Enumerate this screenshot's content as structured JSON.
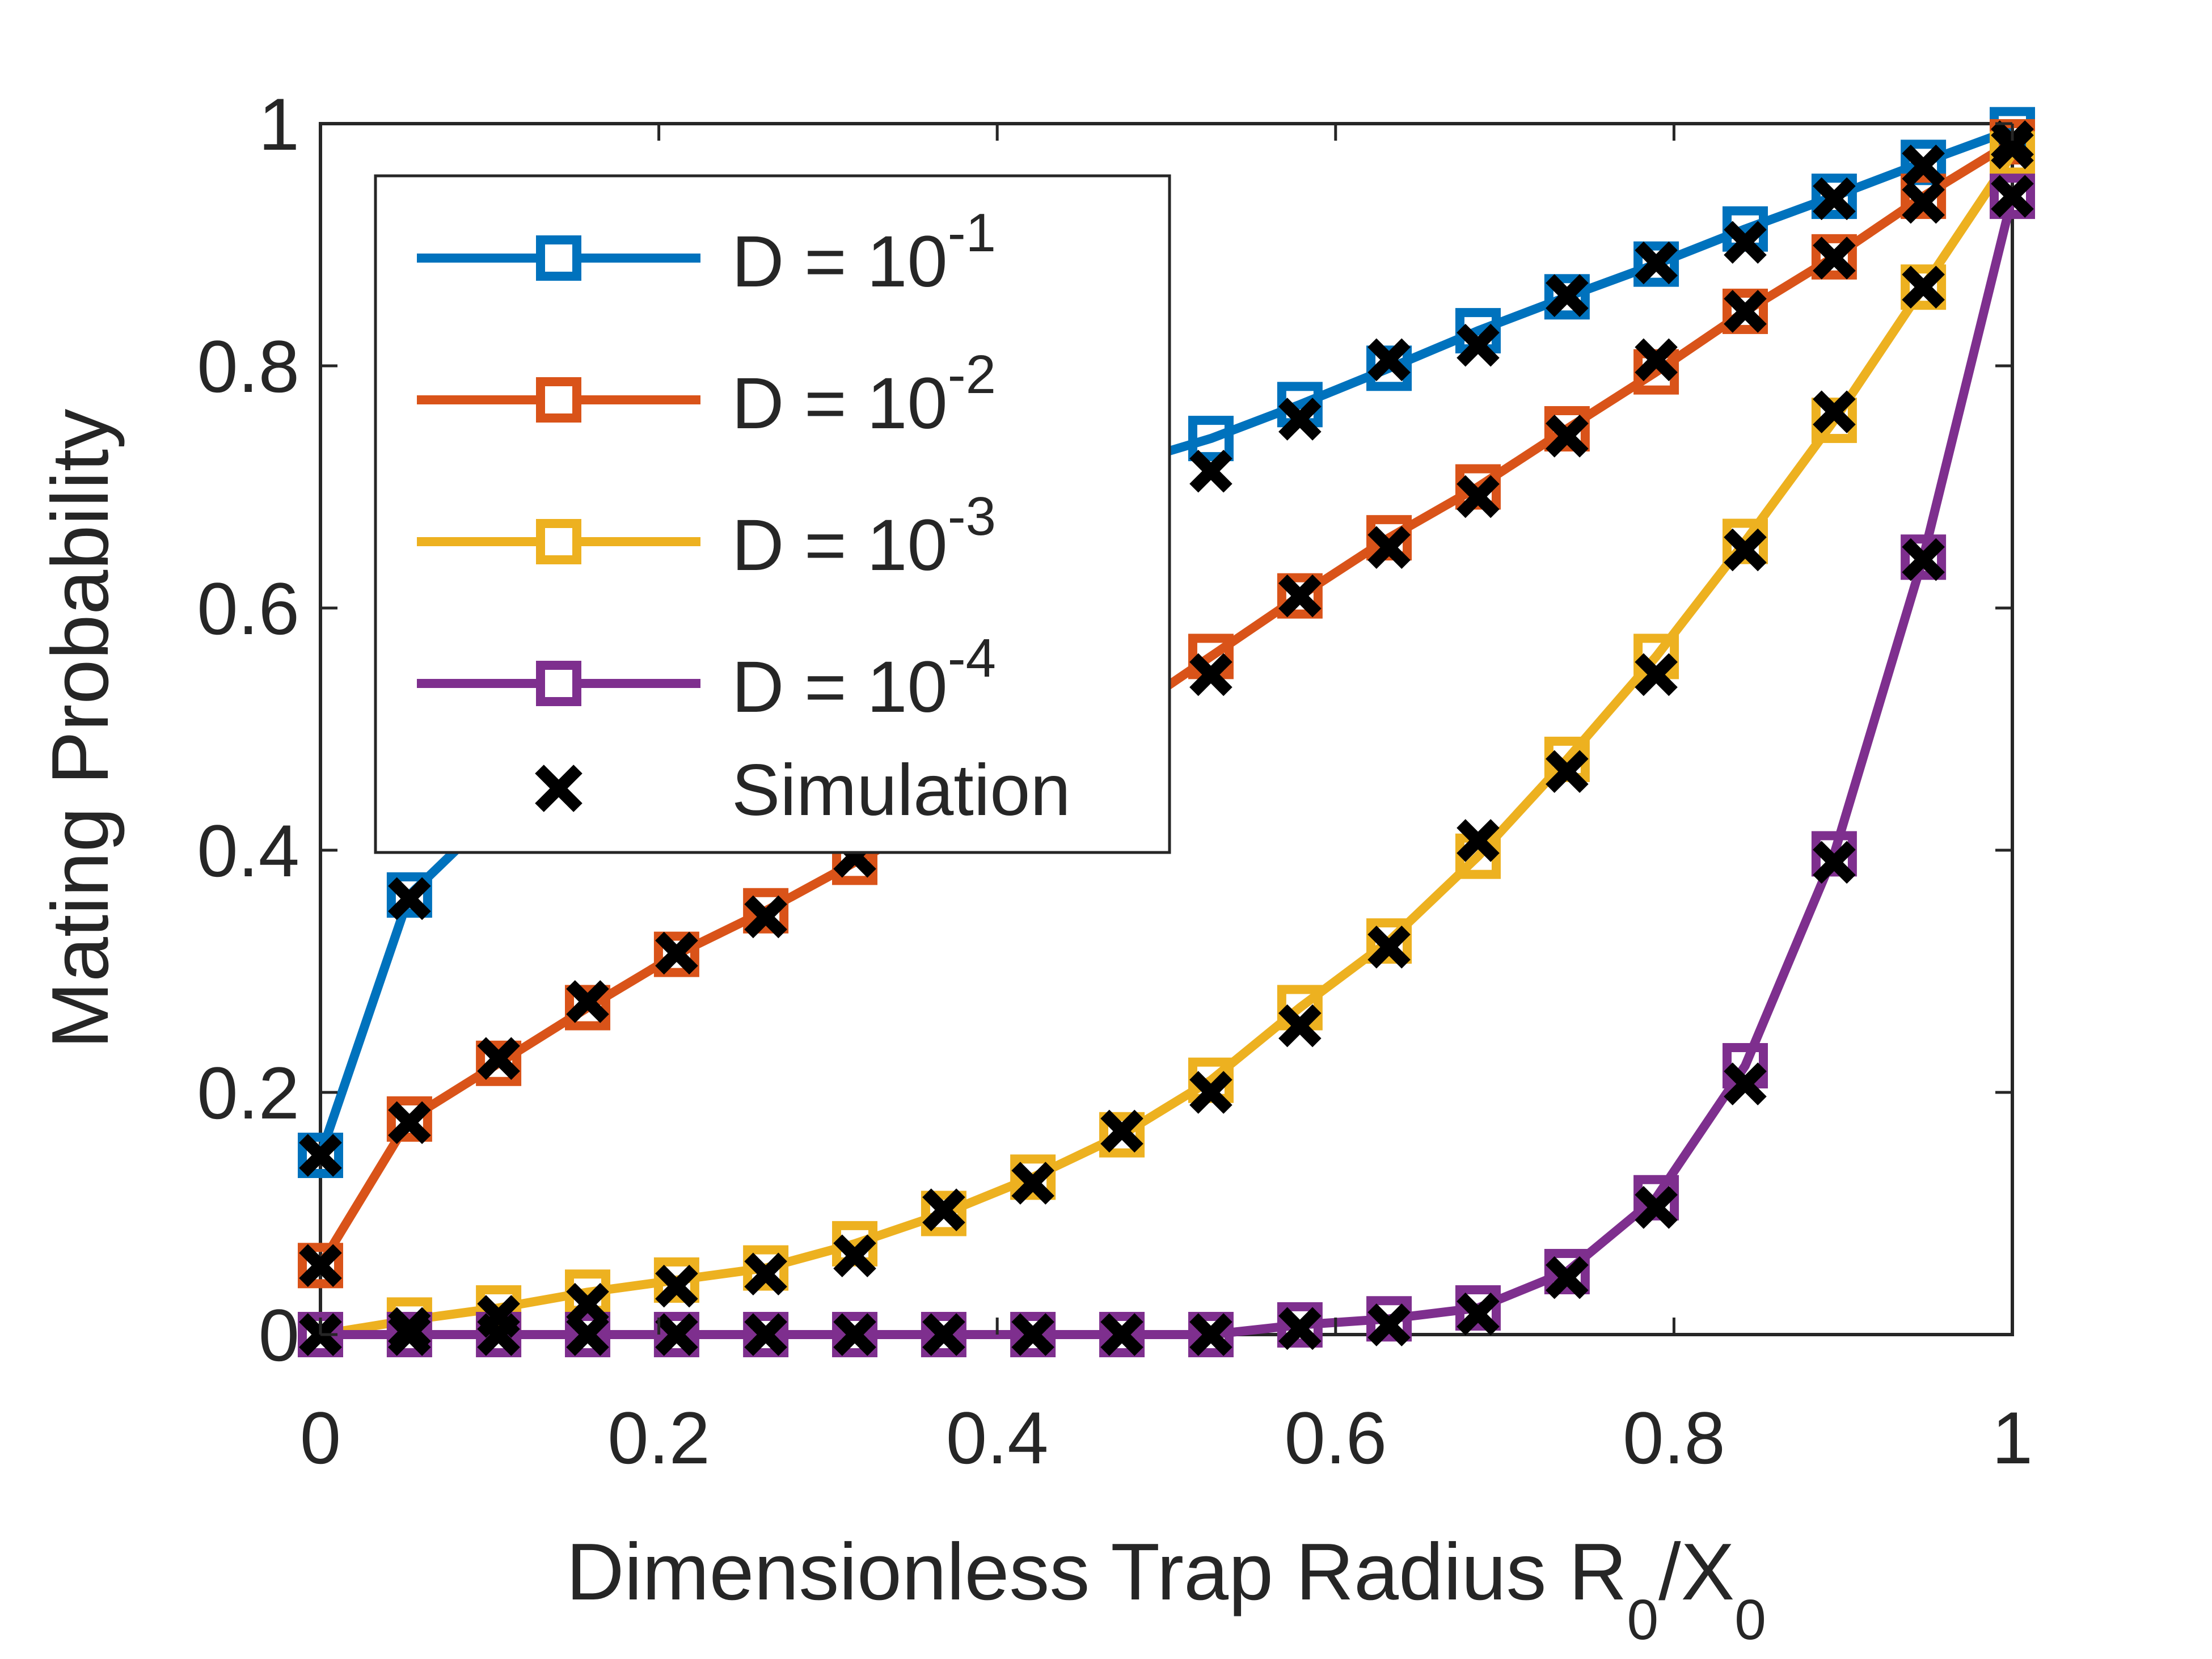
{
  "chart_data": {
    "type": "line",
    "title": "",
    "xlabel": {
      "main": "Dimensionless Trap Radius R",
      "sub1": "0",
      "slash": "/X",
      "sub2": "0"
    },
    "ylabel": "Mating Probability",
    "xlim": [
      0,
      1
    ],
    "ylim": [
      0,
      1
    ],
    "xticks": [
      "0",
      "0.2",
      "0.4",
      "0.6",
      "0.8",
      "1"
    ],
    "yticks": [
      "0",
      "0.2",
      "0.4",
      "0.6",
      "0.8",
      "1"
    ],
    "grid": false,
    "legend_position": "top-left",
    "x": [
      0,
      0.0526,
      0.1053,
      0.1579,
      0.2105,
      0.2632,
      0.3158,
      0.3684,
      0.4211,
      0.4737,
      0.5263,
      0.5789,
      0.6316,
      0.6842,
      0.7368,
      0.7895,
      0.8421,
      0.8947,
      0.9474,
      1.0
    ],
    "series": [
      {
        "base": "D = 10",
        "exp": "-1",
        "color": "#0072BD",
        "values": [
          0.148,
          0.363,
          0.434,
          0.501,
          0.552,
          0.598,
          0.637,
          0.668,
          0.694,
          0.718,
          0.74,
          0.768,
          0.798,
          0.829,
          0.857,
          0.884,
          0.913,
          0.94,
          0.968,
          0.995
        ],
        "sim": [
          0.148,
          0.36,
          0.43,
          0.5,
          0.55,
          0.595,
          0.64,
          0.665,
          0.69,
          0.71,
          0.713,
          0.756,
          0.805,
          0.817,
          0.858,
          0.885,
          0.902,
          0.938,
          0.965,
          0.985
        ]
      },
      {
        "base": "D = 10",
        "exp": "-2",
        "color": "#D95319",
        "values": [
          0.057,
          0.178,
          0.224,
          0.27,
          0.314,
          0.35,
          0.39,
          0.43,
          0.47,
          0.51,
          0.56,
          0.61,
          0.658,
          0.7,
          0.748,
          0.795,
          0.845,
          0.89,
          0.94,
          0.985
        ],
        "sim": [
          0.057,
          0.175,
          0.228,
          0.275,
          0.315,
          0.345,
          0.395,
          0.435,
          0.475,
          0.505,
          0.545,
          0.61,
          0.65,
          0.692,
          0.742,
          0.805,
          0.845,
          0.889,
          0.935,
          0.985
        ]
      },
      {
        "base": "D = 10",
        "exp": "-3",
        "color": "#EDB120",
        "values": [
          0.0,
          0.012,
          0.022,
          0.035,
          0.045,
          0.055,
          0.075,
          0.1,
          0.13,
          0.165,
          0.21,
          0.27,
          0.325,
          0.395,
          0.475,
          0.56,
          0.655,
          0.755,
          0.865,
          0.975
        ],
        "sim": [
          0.0,
          0.005,
          0.015,
          0.025,
          0.04,
          0.05,
          0.065,
          0.103,
          0.125,
          0.168,
          0.2,
          0.255,
          0.32,
          0.408,
          0.465,
          0.545,
          0.648,
          0.762,
          0.865,
          0.98
        ]
      },
      {
        "base": "D = 10",
        "exp": "-4",
        "color": "#7E2F8E",
        "values": [
          0.0,
          0.0,
          0.0,
          0.0,
          0.0,
          0.0,
          0.0,
          0.0,
          0.0,
          0.0,
          0.0,
          0.008,
          0.013,
          0.022,
          0.052,
          0.113,
          0.222,
          0.397,
          0.642,
          0.94
        ],
        "sim": [
          0.0,
          0.0,
          0.0,
          0.0,
          0.0,
          0.0,
          0.0,
          0.0,
          0.0,
          0.0,
          0.0,
          0.005,
          0.008,
          0.017,
          0.047,
          0.105,
          0.207,
          0.39,
          0.64,
          0.94
        ]
      }
    ],
    "simulation_label": "Simulation"
  }
}
